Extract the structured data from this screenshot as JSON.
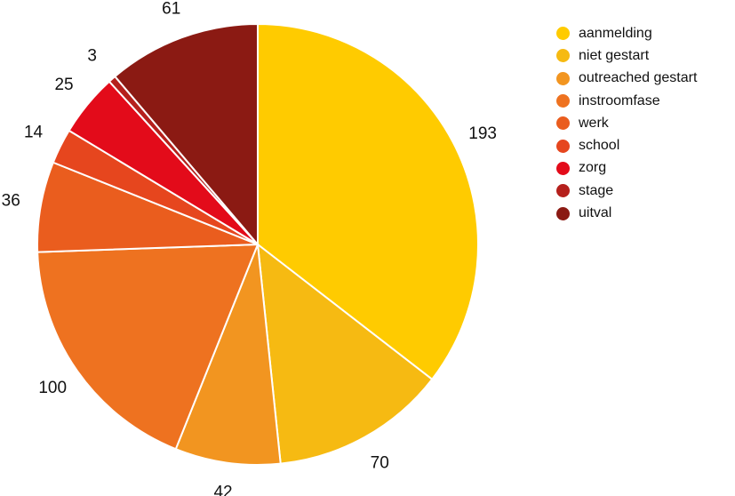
{
  "chart_data": {
    "type": "pie",
    "title": "",
    "legend_position": "right",
    "slices": [
      {
        "label": "aanmelding",
        "value": 193,
        "color": "#FFCB00"
      },
      {
        "label": "niet gestart",
        "value": 70,
        "color": "#F6BA12"
      },
      {
        "label": "outreached gestart",
        "value": 42,
        "color": "#F29520"
      },
      {
        "label": "instroomfase",
        "value": 100,
        "color": "#EE7220"
      },
      {
        "label": "werk",
        "value": 36,
        "color": "#EA5D1E"
      },
      {
        "label": "school",
        "value": 14,
        "color": "#E6461E"
      },
      {
        "label": "zorg",
        "value": 25,
        "color": "#E30B1A"
      },
      {
        "label": "stage",
        "value": 3,
        "color": "#B5201C"
      },
      {
        "label": "uitval",
        "value": 61,
        "color": "#8B1A13"
      }
    ]
  }
}
